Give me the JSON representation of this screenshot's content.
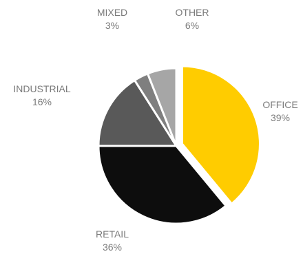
{
  "chart_data": {
    "type": "pie",
    "title": "",
    "slices": [
      {
        "label": "OFFICE",
        "value": 39,
        "value_label": "39%",
        "color": "#FFCC00",
        "exploded": true
      },
      {
        "label": "RETAIL",
        "value": 36,
        "value_label": "36%",
        "color": "#0D0D0D",
        "exploded": false
      },
      {
        "label": "INDUSTRIAL",
        "value": 16,
        "value_label": "16%",
        "color": "#595959",
        "exploded": false
      },
      {
        "label": "MIXED",
        "value": 3,
        "value_label": "3%",
        "color": "#7F7F7F",
        "exploded": false
      },
      {
        "label": "OTHER",
        "value": 6,
        "value_label": "6%",
        "color": "#A6A6A6",
        "exploded": false
      }
    ],
    "start_angle_deg": 0,
    "direction": "clockwise",
    "legend": "none",
    "data_labels": "outside"
  }
}
